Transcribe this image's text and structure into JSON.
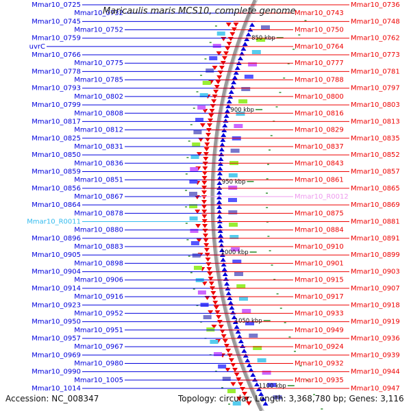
{
  "title": "Maricaulis maris MCS10, complete genome",
  "accession_text": "Accession: NC_008347",
  "info_text": "Topology: circular; Length: 3,368,780 bp; Genes: 3,116",
  "colors": {
    "forward": "#0000dd",
    "reverse": "#ee0000",
    "rna_forward": "#33bbee",
    "rna_reverse": "#ee99ee",
    "backbone": "#888888",
    "tick": "#228822"
  },
  "kbp_ticks": [
    "850 kbp",
    "900 kbp",
    "950 kbp",
    "1000 kbp",
    "1050 kbp",
    "1100 kbp"
  ],
  "left_labels": [
    {
      "text": "Mmar10_0725"
    },
    {
      "text": "Mmar10_0732"
    },
    {
      "text": "Mmar10_0745"
    },
    {
      "text": "Mmar10_0752"
    },
    {
      "text": "Mmar10_0759"
    },
    {
      "text": "uvrC"
    },
    {
      "text": "Mmar10_0766"
    },
    {
      "text": "Mmar10_0775"
    },
    {
      "text": "Mmar10_0778"
    },
    {
      "text": "Mmar10_0785"
    },
    {
      "text": "Mmar10_0793"
    },
    {
      "text": "Mmar10_0802"
    },
    {
      "text": "Mmar10_0799"
    },
    {
      "text": "Mmar10_0808"
    },
    {
      "text": "Mmar10_0817"
    },
    {
      "text": "Mmar10_0812"
    },
    {
      "text": "Mmar10_0825"
    },
    {
      "text": "Mmar10_0831"
    },
    {
      "text": "Mmar10_0850"
    },
    {
      "text": "Mmar10_0836"
    },
    {
      "text": "Mmar10_0859"
    },
    {
      "text": "Mmar10_0851"
    },
    {
      "text": "Mmar10_0856"
    },
    {
      "text": "Mmar10_0867"
    },
    {
      "text": "Mmar10_0864"
    },
    {
      "text": "Mmar10_0878"
    },
    {
      "text": "Mmar10_R0011"
    },
    {
      "text": "Mmar10_0880"
    },
    {
      "text": "Mmar10_0896"
    },
    {
      "text": "Mmar10_0883"
    },
    {
      "text": "Mmar10_0905"
    },
    {
      "text": "Mmar10_0898"
    },
    {
      "text": "Mmar10_0904"
    },
    {
      "text": "Mmar10_0906"
    },
    {
      "text": "Mmar10_0914"
    },
    {
      "text": "Mmar10_0916"
    },
    {
      "text": "Mmar10_0923"
    },
    {
      "text": "Mmar10_0952"
    },
    {
      "text": "Mmar10_0950"
    },
    {
      "text": "Mmar10_0951"
    },
    {
      "text": "Mmar10_0957"
    },
    {
      "text": "Mmar10_0967"
    },
    {
      "text": "Mmar10_0969"
    },
    {
      "text": "Mmar10_0980"
    },
    {
      "text": "Mmar10_0990"
    },
    {
      "text": "Mmar10_1005"
    },
    {
      "text": "Mmar10_1014"
    }
  ],
  "right_labels": [
    {
      "text": "Mmar10_0736"
    },
    {
      "text": "Mmar10_0743"
    },
    {
      "text": "Mmar10_0748"
    },
    {
      "text": "Mmar10_0750"
    },
    {
      "text": "Mmar10_0762"
    },
    {
      "text": "Mmar10_0764"
    },
    {
      "text": "Mmar10_0773"
    },
    {
      "text": "Mmar10_0777"
    },
    {
      "text": "Mmar10_0781"
    },
    {
      "text": "Mmar10_0788"
    },
    {
      "text": "Mmar10_0797"
    },
    {
      "text": "Mmar10_0800"
    },
    {
      "text": "Mmar10_0803"
    },
    {
      "text": "Mmar10_0816"
    },
    {
      "text": "Mmar10_0813"
    },
    {
      "text": "Mmar10_0829"
    },
    {
      "text": "Mmar10_0835"
    },
    {
      "text": "Mmar10_0837"
    },
    {
      "text": "Mmar10_0852"
    },
    {
      "text": "Mmar10_0843"
    },
    {
      "text": "Mmar10_0857"
    },
    {
      "text": "Mmar10_0861"
    },
    {
      "text": "Mmar10_0865"
    },
    {
      "text": "Mmar10_R0012"
    },
    {
      "text": "Mmar10_0869"
    },
    {
      "text": "Mmar10_0875"
    },
    {
      "text": "Mmar10_0881"
    },
    {
      "text": "Mmar10_0884"
    },
    {
      "text": "Mmar10_0891"
    },
    {
      "text": "Mmar10_0910"
    },
    {
      "text": "Mmar10_0899"
    },
    {
      "text": "Mmar10_0901"
    },
    {
      "text": "Mmar10_0903"
    },
    {
      "text": "Mmar10_0915"
    },
    {
      "text": "Mmar10_0907"
    },
    {
      "text": "Mmar10_0917"
    },
    {
      "text": "Mmar10_0918"
    },
    {
      "text": "Mmar10_0933"
    },
    {
      "text": "Mmar10_0919"
    },
    {
      "text": "Mmar10_0949"
    },
    {
      "text": "Mmar10_0936"
    },
    {
      "text": "Mmar10_0924"
    },
    {
      "text": "Mmar10_0939"
    },
    {
      "text": "Mmar10_0932"
    },
    {
      "text": "Mmar10_0944"
    },
    {
      "text": "Mmar10_0935"
    },
    {
      "text": "Mmar10_0947"
    }
  ]
}
